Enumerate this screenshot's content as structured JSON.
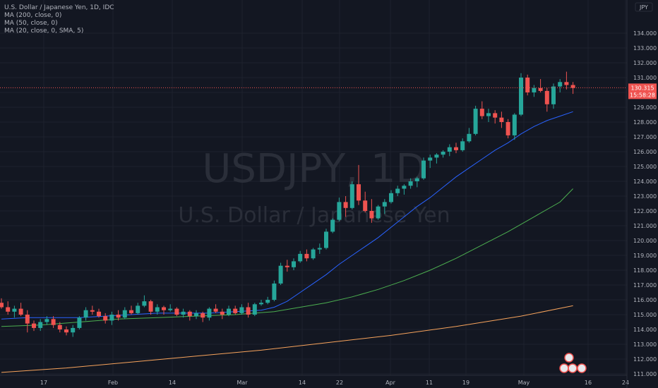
{
  "chart_data": {
    "type": "candlestick",
    "legend": [
      "U.S. Dollar / Japanese Yen, 1D, IDC",
      "MA (200, close, 0)",
      "MA (50, close, 0)",
      "MA (20, close, 0, SMA, 5)"
    ],
    "watermark": {
      "symbol": "USDJPY, 1D",
      "name": "U.S. Dollar / Japanese Yen"
    },
    "currency_label": "JPY",
    "y_ticks": [
      134,
      133,
      132,
      131,
      130,
      129,
      128,
      127,
      126,
      125,
      124,
      123,
      122,
      121,
      120,
      119,
      118,
      117,
      116,
      115,
      114,
      113,
      112,
      111
    ],
    "ylim": [
      110.8,
      135.0
    ],
    "x_ticks": [
      "17",
      "Feb",
      "14",
      "Mar",
      "14",
      "22",
      "Apr",
      "11",
      "19",
      "May",
      "16",
      "24"
    ],
    "last_price": "130.315",
    "countdown": "15:58:28",
    "colors": {
      "up": "#26a69a",
      "down": "#ef5350",
      "ma20": "#2962ff",
      "ma50": "#4caf50",
      "ma200": "#f7a35c",
      "background": "#131722",
      "grid": "#1e222d",
      "text": "#b2b5be"
    },
    "candles": [
      {
        "o": 115.8,
        "h": 116.1,
        "l": 115.4,
        "c": 115.5
      },
      {
        "o": 115.5,
        "h": 115.9,
        "l": 115.0,
        "c": 115.2
      },
      {
        "o": 115.2,
        "h": 115.6,
        "l": 114.8,
        "c": 115.4
      },
      {
        "o": 115.4,
        "h": 115.8,
        "l": 114.9,
        "c": 115.0
      },
      {
        "o": 115.0,
        "h": 115.3,
        "l": 113.8,
        "c": 114.4
      },
      {
        "o": 114.4,
        "h": 114.6,
        "l": 113.9,
        "c": 114.1
      },
      {
        "o": 114.1,
        "h": 114.7,
        "l": 113.9,
        "c": 114.5
      },
      {
        "o": 114.5,
        "h": 114.9,
        "l": 114.3,
        "c": 114.7
      },
      {
        "o": 114.7,
        "h": 114.9,
        "l": 114.1,
        "c": 114.3
      },
      {
        "o": 114.3,
        "h": 114.5,
        "l": 113.8,
        "c": 114.0
      },
      {
        "o": 114.0,
        "h": 114.2,
        "l": 113.6,
        "c": 113.8
      },
      {
        "o": 113.8,
        "h": 114.3,
        "l": 113.5,
        "c": 114.1
      },
      {
        "o": 114.1,
        "h": 114.9,
        "l": 114.0,
        "c": 114.8
      },
      {
        "o": 114.8,
        "h": 115.5,
        "l": 114.6,
        "c": 115.3
      },
      {
        "o": 115.3,
        "h": 115.6,
        "l": 115.0,
        "c": 115.2
      },
      {
        "o": 115.2,
        "h": 115.4,
        "l": 114.8,
        "c": 114.9
      },
      {
        "o": 114.9,
        "h": 115.1,
        "l": 114.4,
        "c": 114.6
      },
      {
        "o": 114.6,
        "h": 115.2,
        "l": 114.3,
        "c": 115.0
      },
      {
        "o": 115.0,
        "h": 115.3,
        "l": 114.6,
        "c": 114.8
      },
      {
        "o": 114.8,
        "h": 115.5,
        "l": 114.7,
        "c": 115.3
      },
      {
        "o": 115.3,
        "h": 115.6,
        "l": 115.0,
        "c": 115.1
      },
      {
        "o": 115.1,
        "h": 115.8,
        "l": 115.0,
        "c": 115.6
      },
      {
        "o": 115.6,
        "h": 116.3,
        "l": 115.5,
        "c": 115.9
      },
      {
        "o": 115.9,
        "h": 116.0,
        "l": 115.0,
        "c": 115.2
      },
      {
        "o": 115.2,
        "h": 115.7,
        "l": 115.0,
        "c": 115.5
      },
      {
        "o": 115.5,
        "h": 115.6,
        "l": 115.0,
        "c": 115.3
      },
      {
        "o": 115.3,
        "h": 115.7,
        "l": 115.2,
        "c": 115.4
      },
      {
        "o": 115.4,
        "h": 115.5,
        "l": 114.9,
        "c": 115.0
      },
      {
        "o": 115.0,
        "h": 115.4,
        "l": 114.8,
        "c": 115.2
      },
      {
        "o": 115.2,
        "h": 115.3,
        "l": 114.6,
        "c": 114.9
      },
      {
        "o": 114.9,
        "h": 115.3,
        "l": 114.7,
        "c": 115.1
      },
      {
        "o": 115.1,
        "h": 115.2,
        "l": 114.5,
        "c": 114.8
      },
      {
        "o": 114.8,
        "h": 115.5,
        "l": 114.6,
        "c": 115.4
      },
      {
        "o": 115.4,
        "h": 115.7,
        "l": 115.1,
        "c": 115.2
      },
      {
        "o": 115.2,
        "h": 115.4,
        "l": 114.7,
        "c": 115.0
      },
      {
        "o": 115.0,
        "h": 115.6,
        "l": 114.9,
        "c": 115.4
      },
      {
        "o": 115.4,
        "h": 115.6,
        "l": 115.0,
        "c": 115.1
      },
      {
        "o": 115.1,
        "h": 115.7,
        "l": 115.0,
        "c": 115.5
      },
      {
        "o": 115.5,
        "h": 115.8,
        "l": 114.8,
        "c": 115.0
      },
      {
        "o": 115.0,
        "h": 115.8,
        "l": 114.9,
        "c": 115.7
      },
      {
        "o": 115.7,
        "h": 116.0,
        "l": 115.6,
        "c": 115.8
      },
      {
        "o": 115.8,
        "h": 116.2,
        "l": 115.7,
        "c": 116.0
      },
      {
        "o": 116.0,
        "h": 117.3,
        "l": 115.9,
        "c": 117.1
      },
      {
        "o": 117.1,
        "h": 118.5,
        "l": 117.0,
        "c": 118.3
      },
      {
        "o": 118.3,
        "h": 118.7,
        "l": 117.9,
        "c": 118.2
      },
      {
        "o": 118.2,
        "h": 118.8,
        "l": 118.0,
        "c": 118.6
      },
      {
        "o": 118.6,
        "h": 119.3,
        "l": 118.5,
        "c": 119.1
      },
      {
        "o": 119.1,
        "h": 119.4,
        "l": 118.6,
        "c": 118.8
      },
      {
        "o": 118.8,
        "h": 119.5,
        "l": 118.7,
        "c": 119.4
      },
      {
        "o": 119.4,
        "h": 119.8,
        "l": 119.1,
        "c": 119.5
      },
      {
        "o": 119.5,
        "h": 120.8,
        "l": 119.4,
        "c": 120.6
      },
      {
        "o": 120.6,
        "h": 121.5,
        "l": 120.5,
        "c": 121.4
      },
      {
        "o": 121.4,
        "h": 122.9,
        "l": 121.3,
        "c": 122.6
      },
      {
        "o": 122.6,
        "h": 123.0,
        "l": 121.6,
        "c": 122.2
      },
      {
        "o": 122.2,
        "h": 124.0,
        "l": 122.1,
        "c": 123.8
      },
      {
        "o": 123.8,
        "h": 125.1,
        "l": 122.4,
        "c": 122.7
      },
      {
        "o": 122.7,
        "h": 123.3,
        "l": 121.9,
        "c": 122.0
      },
      {
        "o": 122.0,
        "h": 122.8,
        "l": 121.2,
        "c": 121.5
      },
      {
        "o": 121.5,
        "h": 122.4,
        "l": 121.4,
        "c": 122.3
      },
      {
        "o": 122.3,
        "h": 122.8,
        "l": 121.8,
        "c": 122.6
      },
      {
        "o": 122.6,
        "h": 123.4,
        "l": 122.5,
        "c": 123.2
      },
      {
        "o": 123.2,
        "h": 123.7,
        "l": 123.0,
        "c": 123.5
      },
      {
        "o": 123.5,
        "h": 123.8,
        "l": 123.1,
        "c": 123.7
      },
      {
        "o": 123.7,
        "h": 124.2,
        "l": 123.5,
        "c": 124.0
      },
      {
        "o": 124.0,
        "h": 124.3,
        "l": 123.6,
        "c": 124.2
      },
      {
        "o": 124.2,
        "h": 125.6,
        "l": 124.1,
        "c": 125.4
      },
      {
        "o": 125.4,
        "h": 125.8,
        "l": 124.9,
        "c": 125.6
      },
      {
        "o": 125.6,
        "h": 125.9,
        "l": 125.2,
        "c": 125.8
      },
      {
        "o": 125.8,
        "h": 126.1,
        "l": 125.6,
        "c": 126.0
      },
      {
        "o": 126.0,
        "h": 126.5,
        "l": 125.7,
        "c": 126.3
      },
      {
        "o": 126.3,
        "h": 126.6,
        "l": 125.9,
        "c": 126.1
      },
      {
        "o": 126.1,
        "h": 126.9,
        "l": 126.0,
        "c": 126.7
      },
      {
        "o": 126.7,
        "h": 127.6,
        "l": 126.6,
        "c": 127.2
      },
      {
        "o": 127.2,
        "h": 129.1,
        "l": 127.1,
        "c": 128.9
      },
      {
        "o": 128.9,
        "h": 129.4,
        "l": 128.2,
        "c": 128.4
      },
      {
        "o": 128.4,
        "h": 128.9,
        "l": 128.0,
        "c": 128.6
      },
      {
        "o": 128.6,
        "h": 128.8,
        "l": 127.9,
        "c": 128.3
      },
      {
        "o": 128.3,
        "h": 128.7,
        "l": 127.6,
        "c": 128.0
      },
      {
        "o": 128.0,
        "h": 128.2,
        "l": 126.9,
        "c": 127.1
      },
      {
        "o": 127.1,
        "h": 128.6,
        "l": 126.8,
        "c": 128.5
      },
      {
        "o": 128.5,
        "h": 131.3,
        "l": 128.4,
        "c": 131.0
      },
      {
        "o": 131.0,
        "h": 131.2,
        "l": 129.8,
        "c": 130.0
      },
      {
        "o": 130.0,
        "h": 130.5,
        "l": 129.7,
        "c": 130.3
      },
      {
        "o": 130.3,
        "h": 130.9,
        "l": 130.0,
        "c": 130.1
      },
      {
        "o": 130.1,
        "h": 130.3,
        "l": 128.7,
        "c": 129.2
      },
      {
        "o": 129.2,
        "h": 130.6,
        "l": 128.9,
        "c": 130.4
      },
      {
        "o": 130.4,
        "h": 130.9,
        "l": 130.0,
        "c": 130.7
      },
      {
        "o": 130.7,
        "h": 131.4,
        "l": 130.2,
        "c": 130.5
      },
      {
        "o": 130.5,
        "h": 130.7,
        "l": 129.9,
        "c": 130.3
      }
    ],
    "ma20": [
      [
        0,
        114.7
      ],
      [
        4,
        114.8
      ],
      [
        8,
        114.8
      ],
      [
        12,
        114.8
      ],
      [
        16,
        114.9
      ],
      [
        20,
        115.0
      ],
      [
        24,
        115.1
      ],
      [
        28,
        115.1
      ],
      [
        32,
        115.1
      ],
      [
        36,
        115.2
      ],
      [
        40,
        115.3
      ],
      [
        42,
        115.5
      ],
      [
        44,
        115.9
      ],
      [
        46,
        116.5
      ],
      [
        48,
        117.1
      ],
      [
        50,
        117.7
      ],
      [
        52,
        118.4
      ],
      [
        54,
        119.0
      ],
      [
        56,
        119.6
      ],
      [
        58,
        120.2
      ],
      [
        60,
        120.9
      ],
      [
        62,
        121.6
      ],
      [
        64,
        122.3
      ],
      [
        66,
        122.9
      ],
      [
        68,
        123.6
      ],
      [
        70,
        124.3
      ],
      [
        72,
        124.9
      ],
      [
        74,
        125.5
      ],
      [
        76,
        126.1
      ],
      [
        78,
        126.6
      ],
      [
        80,
        127.2
      ],
      [
        82,
        127.7
      ],
      [
        84,
        128.1
      ],
      [
        86,
        128.4
      ],
      [
        88,
        128.7
      ]
    ],
    "ma50": [
      [
        0,
        114.2
      ],
      [
        6,
        114.3
      ],
      [
        12,
        114.5
      ],
      [
        18,
        114.7
      ],
      [
        24,
        114.8
      ],
      [
        30,
        114.9
      ],
      [
        36,
        115.0
      ],
      [
        42,
        115.2
      ],
      [
        46,
        115.5
      ],
      [
        50,
        115.8
      ],
      [
        54,
        116.2
      ],
      [
        58,
        116.7
      ],
      [
        62,
        117.3
      ],
      [
        66,
        118.0
      ],
      [
        70,
        118.8
      ],
      [
        74,
        119.7
      ],
      [
        78,
        120.6
      ],
      [
        82,
        121.6
      ],
      [
        86,
        122.6
      ],
      [
        88,
        123.5
      ]
    ],
    "ma200": [
      [
        0,
        111.1
      ],
      [
        10,
        111.4
      ],
      [
        20,
        111.8
      ],
      [
        30,
        112.2
      ],
      [
        40,
        112.6
      ],
      [
        50,
        113.1
      ],
      [
        60,
        113.6
      ],
      [
        70,
        114.2
      ],
      [
        80,
        114.9
      ],
      [
        88,
        115.6
      ]
    ]
  }
}
